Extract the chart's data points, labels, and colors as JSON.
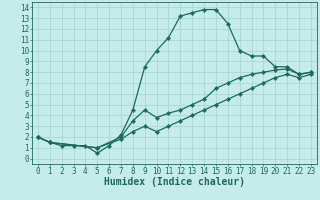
{
  "xlabel": "Humidex (Indice chaleur)",
  "bg_color": "#c5ecea",
  "line_color": "#1a6b5a",
  "grid_color": "#a8d8d4",
  "xlim": [
    -0.5,
    23.5
  ],
  "ylim": [
    -0.5,
    14.5
  ],
  "xticks": [
    0,
    1,
    2,
    3,
    4,
    5,
    6,
    7,
    8,
    9,
    10,
    11,
    12,
    13,
    14,
    15,
    16,
    17,
    18,
    19,
    20,
    21,
    22,
    23
  ],
  "yticks": [
    0,
    1,
    2,
    3,
    4,
    5,
    6,
    7,
    8,
    9,
    10,
    11,
    12,
    13,
    14
  ],
  "line1_x": [
    0,
    1,
    2,
    3,
    4,
    5,
    6,
    7,
    8,
    9,
    10,
    11,
    12,
    13,
    14,
    15,
    16,
    17,
    18,
    19,
    20,
    21,
    22,
    23
  ],
  "line1_y": [
    2.0,
    1.5,
    1.2,
    1.2,
    1.2,
    0.5,
    1.2,
    2.2,
    4.5,
    8.5,
    10.0,
    11.2,
    13.2,
    13.5,
    13.8,
    13.8,
    12.5,
    10.0,
    9.5,
    9.5,
    8.5,
    8.5,
    7.8,
    8.0
  ],
  "line2_x": [
    0,
    1,
    5,
    7,
    8,
    9,
    10,
    11,
    12,
    13,
    14,
    15,
    16,
    17,
    18,
    19,
    20,
    21,
    22,
    23
  ],
  "line2_y": [
    2.0,
    1.5,
    1.0,
    2.0,
    3.5,
    4.5,
    3.8,
    4.2,
    4.5,
    5.0,
    5.5,
    6.5,
    7.0,
    7.5,
    7.8,
    8.0,
    8.2,
    8.3,
    7.8,
    8.0
  ],
  "line3_x": [
    0,
    1,
    5,
    7,
    8,
    9,
    10,
    11,
    12,
    13,
    14,
    15,
    16,
    17,
    18,
    19,
    20,
    21,
    22,
    23
  ],
  "line3_y": [
    2.0,
    1.5,
    1.0,
    1.8,
    2.5,
    3.0,
    2.5,
    3.0,
    3.5,
    4.0,
    4.5,
    5.0,
    5.5,
    6.0,
    6.5,
    7.0,
    7.5,
    7.8,
    7.5,
    7.8
  ],
  "xlabel_fontsize": 7,
  "tick_fontsize": 5.5,
  "xlabel_fontsize_bold": true
}
